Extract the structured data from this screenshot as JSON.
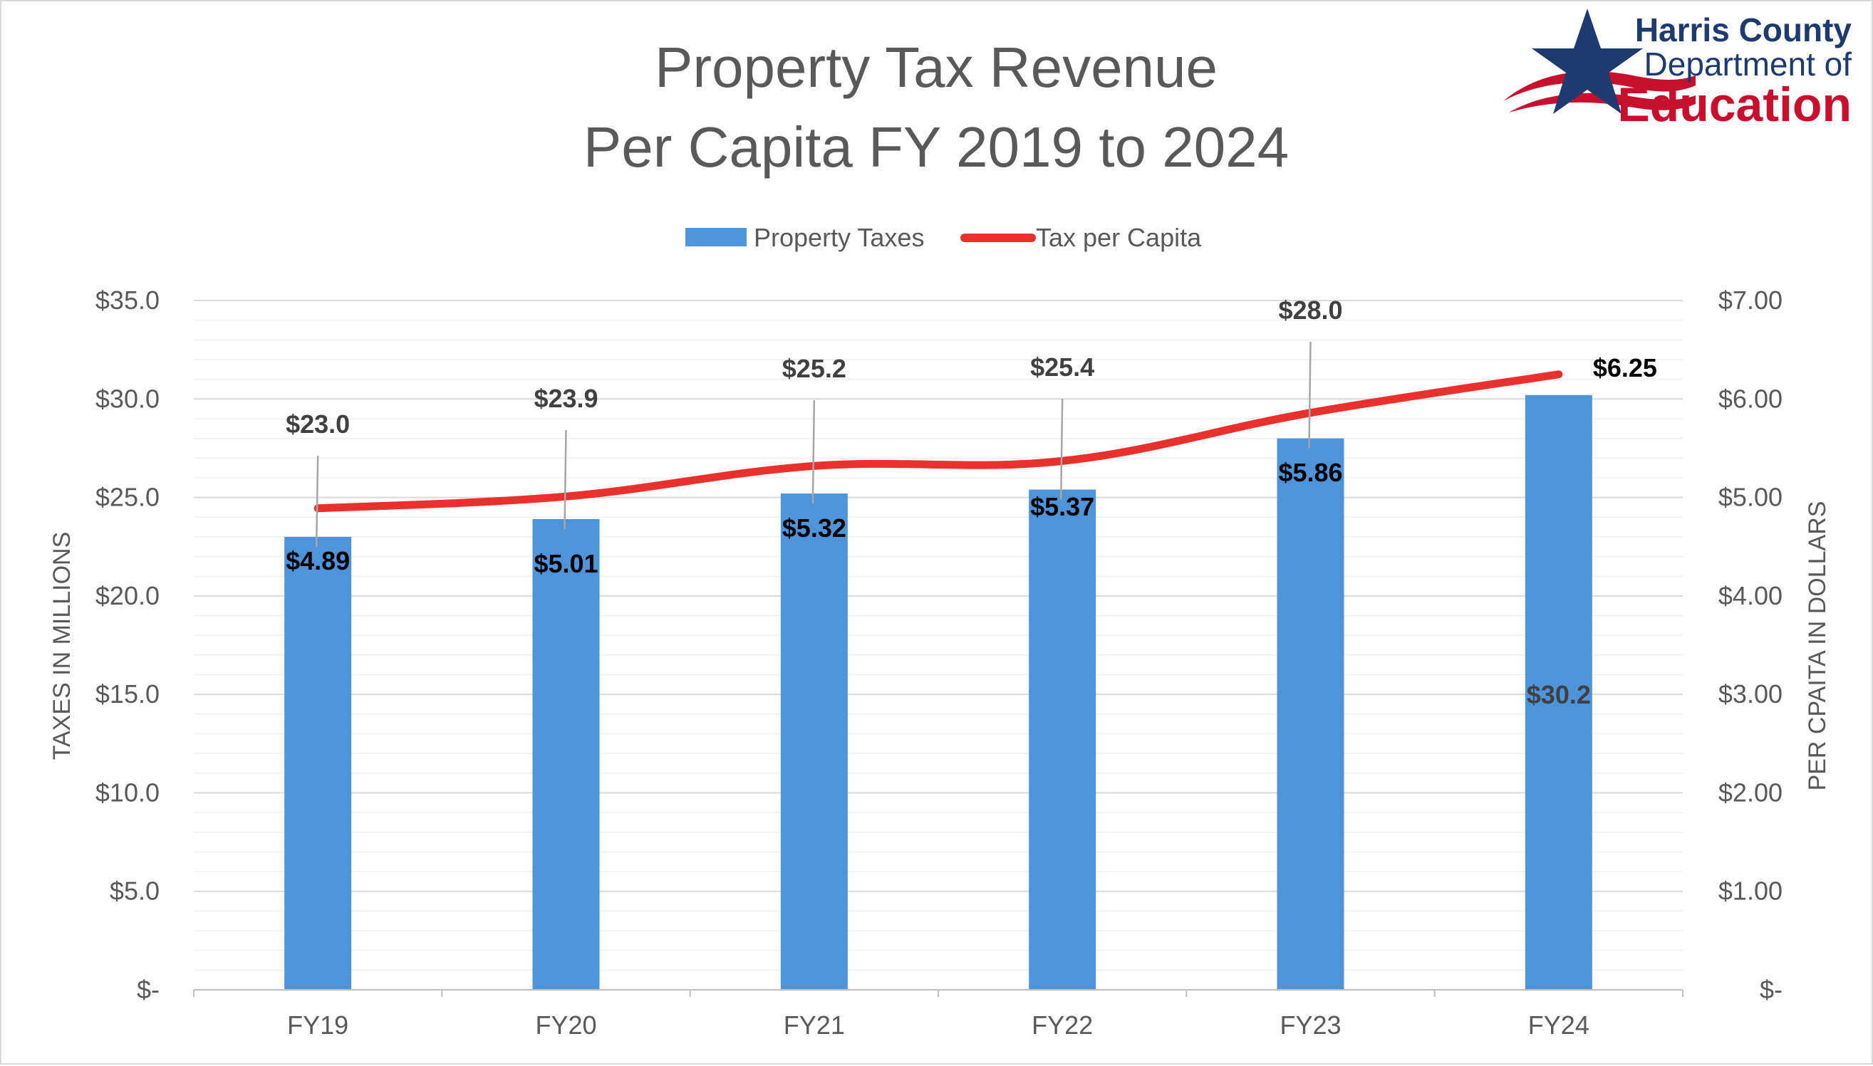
{
  "logo": {
    "line1": "Harris County",
    "line2": "Department of",
    "line3": "Education",
    "colors": {
      "navy": "#1f3a6e",
      "red": "#c8102e"
    }
  },
  "legend": {
    "bars": "Property Taxes",
    "line": "Tax per Capita"
  },
  "axes": {
    "left_title": "TAXES IN MILLIONS",
    "right_title": "PER CPAITA IN DOLLARS",
    "left_ticks": [
      "$35.0",
      "$30.0",
      "$25.0",
      "$20.0",
      "$15.0",
      "$10.0",
      "$5.0",
      "$-"
    ],
    "right_ticks": [
      "$7.00",
      "$6.00",
      "$5.00",
      "$4.00",
      "$3.00",
      "$2.00",
      "$1.00",
      "$-"
    ]
  },
  "colors": {
    "bar": "#4f94d9",
    "line": "#e8312c",
    "grid": "#d9d9d9",
    "leader": "#a6a6a6"
  },
  "chart_data": {
    "type": "bar",
    "title": "Property Tax Revenue Per Capita FY 2019 to 2024",
    "title_lines": [
      "Property Tax Revenue",
      "Per Capita FY 2019 to 2024"
    ],
    "categories": [
      "FY19",
      "FY20",
      "FY21",
      "FY22",
      "FY23",
      "FY24"
    ],
    "ylabel": "TAXES IN MILLIONS",
    "y2label": "PER CPAITA IN DOLLARS",
    "ylim": [
      0,
      35
    ],
    "y2lim": [
      0,
      7
    ],
    "grid": true,
    "legend_position": "top",
    "series": [
      {
        "name": "Property Taxes",
        "type": "bar",
        "axis": "left",
        "values": [
          23.0,
          23.9,
          25.2,
          25.4,
          28.0,
          30.2
        ],
        "labels": [
          "$23.0",
          "$23.9",
          "$25.2",
          "$25.4",
          "$28.0",
          "$30.2"
        ]
      },
      {
        "name": "Tax per Capita",
        "type": "line",
        "axis": "right",
        "values": [
          4.89,
          5.01,
          5.32,
          5.37,
          5.86,
          6.25
        ],
        "labels": [
          "$4.89",
          "$5.01",
          "$5.32",
          "$5.37",
          "$5.86",
          "$6.25"
        ]
      }
    ]
  }
}
